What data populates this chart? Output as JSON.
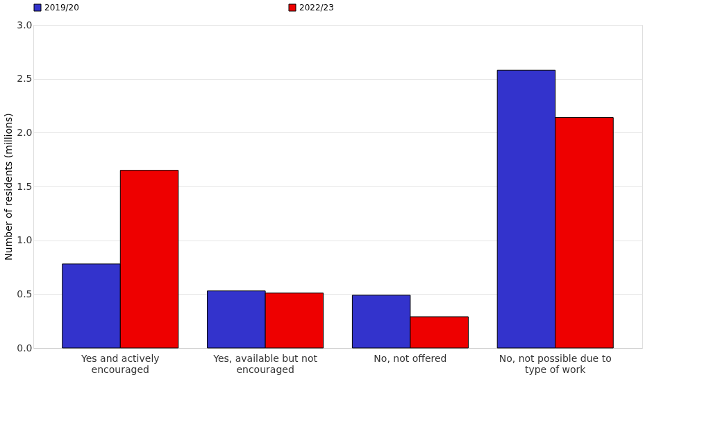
{
  "chart_data": {
    "type": "bar",
    "ylabel": "Number of residents (millions)",
    "categories": [
      "Yes and actively encouraged",
      "Yes, available but not encouraged",
      "No, not offered",
      "No, not possible due to type of work"
    ],
    "series": [
      {
        "name": "2019/20",
        "color": "#3333cc",
        "values": [
          0.78,
          0.53,
          0.49,
          2.58
        ]
      },
      {
        "name": "2022/23",
        "color": "#ee0000",
        "values": [
          1.65,
          0.51,
          0.29,
          2.14
        ]
      }
    ],
    "ylim": [
      0,
      3
    ],
    "yticks": [
      {
        "value": 0,
        "label": "0.0"
      },
      {
        "value": 0.5,
        "label": "0.5"
      },
      {
        "value": 1,
        "label": "1.0"
      },
      {
        "value": 1.5,
        "label": "1.5"
      },
      {
        "value": 2,
        "label": "2.0"
      },
      {
        "value": 2.5,
        "label": "2.5"
      },
      {
        "value": 3,
        "label": "3.0"
      }
    ],
    "grid": "y",
    "legend": "top"
  }
}
